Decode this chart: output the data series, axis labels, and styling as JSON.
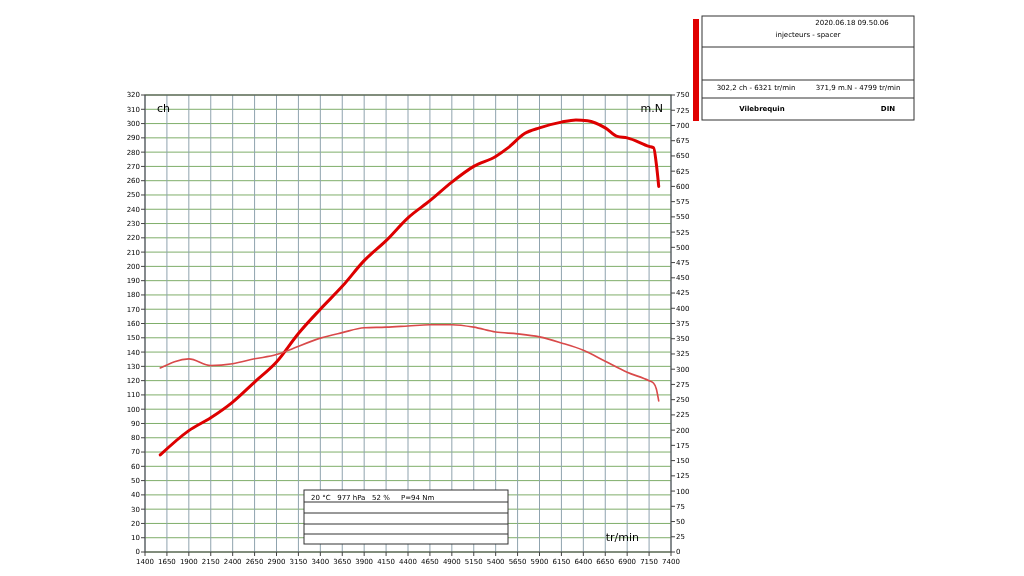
{
  "chart_data": {
    "type": "line",
    "ylabel": "ch",
    "y2label": "m.N",
    "xlabel": "tr/min",
    "annotations": [
      "2020.06.18 09.50.06",
      "injecteurs - spacer",
      "302,2 ch - 6321 tr/min",
      "371,9 m.N - 4799 tr/min",
      "Vilebrequin",
      "DIN",
      "20 °C   977 hPa   52 %     P=94 Nm"
    ],
    "xlim": [
      1400,
      7400
    ],
    "xticks": [
      1400,
      1650,
      1900,
      2150,
      2400,
      2650,
      2900,
      3150,
      3400,
      3650,
      3900,
      4150,
      4400,
      4650,
      4900,
      5150,
      5400,
      5650,
      5900,
      6150,
      6400,
      6650,
      6900,
      7150,
      7400
    ],
    "ylim": [
      0,
      320
    ],
    "yticks": [
      0,
      10,
      20,
      30,
      40,
      50,
      60,
      70,
      80,
      90,
      100,
      110,
      120,
      130,
      140,
      150,
      160,
      170,
      180,
      190,
      200,
      210,
      220,
      230,
      240,
      250,
      260,
      270,
      280,
      290,
      300,
      310,
      320
    ],
    "y2lim": [
      0,
      750
    ],
    "y2ticks": [
      0,
      25,
      50,
      75,
      100,
      125,
      150,
      175,
      200,
      225,
      250,
      275,
      300,
      325,
      350,
      375,
      400,
      425,
      450,
      475,
      500,
      525,
      550,
      575,
      600,
      625,
      650,
      675,
      700,
      725,
      750
    ],
    "grid": true,
    "series": [
      {
        "color": "#dd0000",
        "x": [
          1574,
          1900,
          2150,
          2400,
          2650,
          2900,
          3150,
          3400,
          3650,
          3900,
          4150,
          4400,
          4650,
          4900,
          5150,
          5400,
          5540,
          5730,
          5900,
          6150,
          6315,
          6447,
          6650,
          6787,
          6900,
          7150,
          7202,
          7232,
          7260
        ],
        "values": [
          68,
          85,
          94,
          105,
          119,
          133,
          153,
          170,
          186,
          204,
          218,
          234,
          246,
          259,
          270,
          277,
          283,
          293,
          297,
          301,
          302.5,
          302,
          297,
          291,
          290,
          284,
          283,
          272,
          256
        ]
      },
      {
        "color": "#d94a4a",
        "axis": "y2",
        "x": [
          1574,
          1900,
          2150,
          2400,
          2650,
          2900,
          3000,
          3400,
          3650,
          3900,
          4150,
          4400,
          4650,
          4900,
          5150,
          5400,
          5650,
          5900,
          6150,
          6400,
          6650,
          6900,
          7150,
          7202,
          7232,
          7260
        ],
        "values": [
          302,
          317,
          306,
          309,
          317,
          324,
          329,
          351,
          360,
          368,
          369,
          371,
          373,
          373,
          369,
          361,
          358,
          353,
          343,
          331,
          313,
          295,
          281,
          277,
          268,
          248
        ]
      }
    ]
  }
}
